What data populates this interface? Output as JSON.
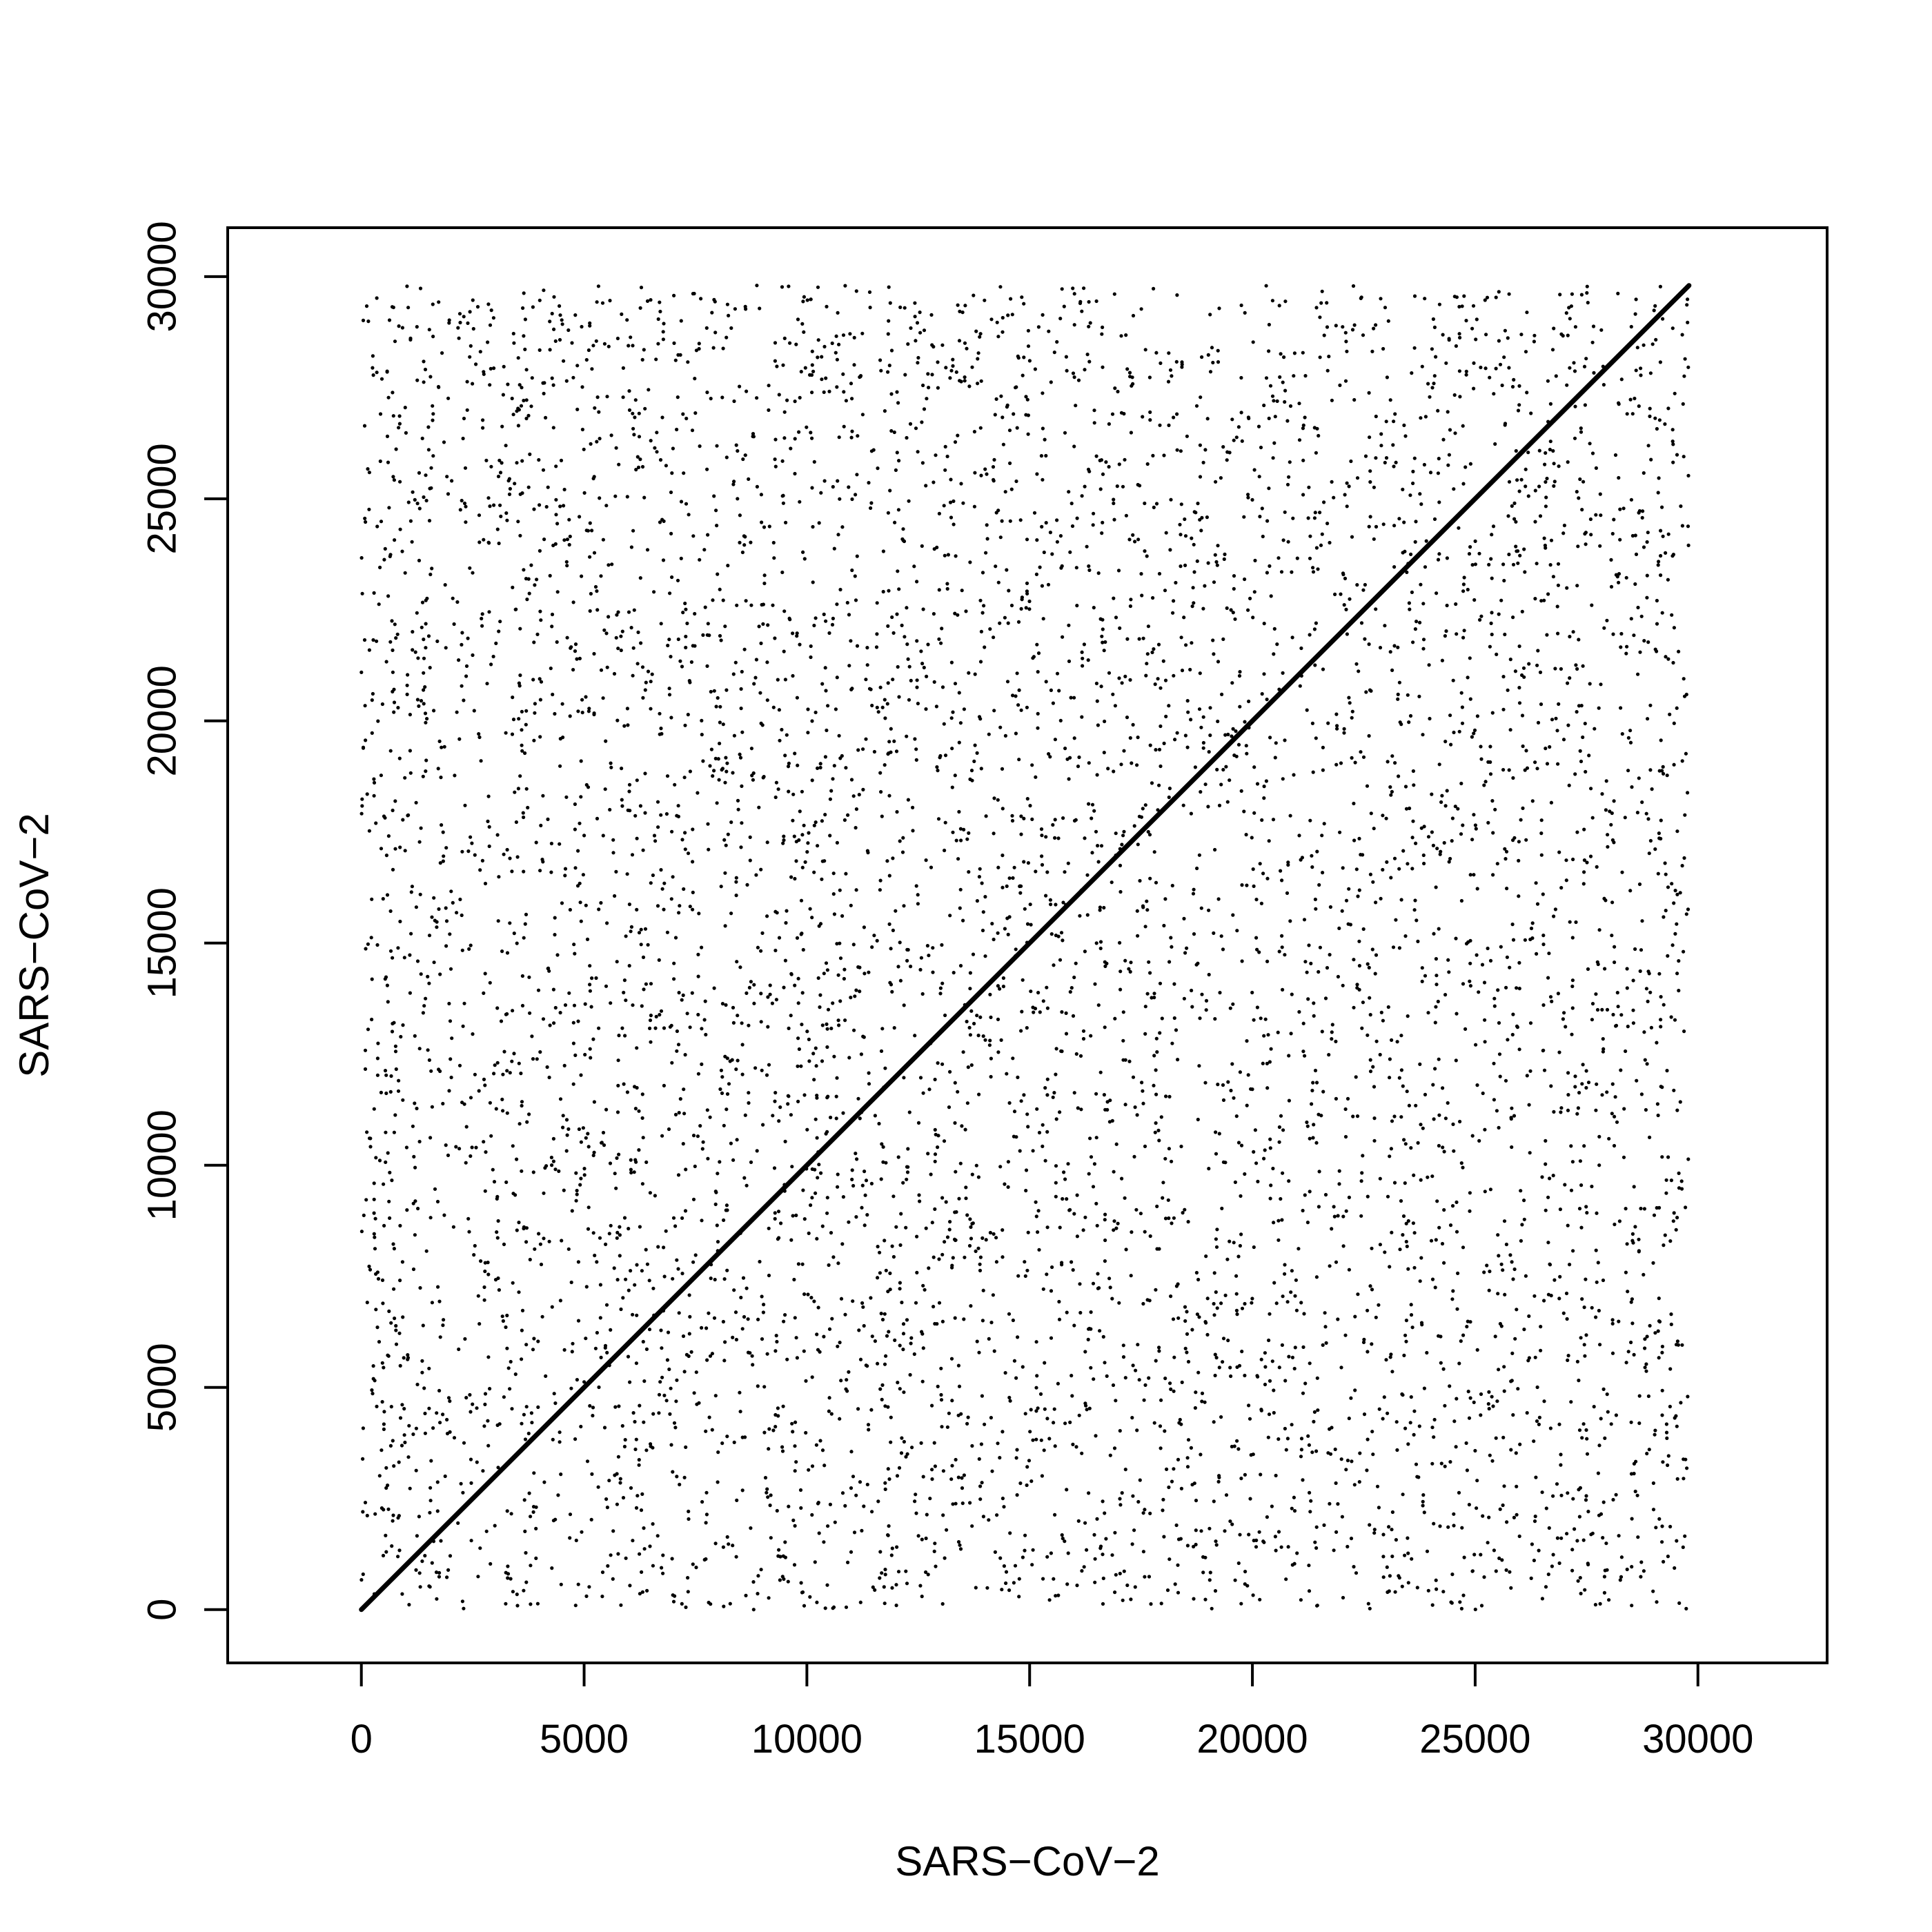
{
  "chart_data": {
    "type": "scatter",
    "title": "",
    "xlabel": "SARS−CoV−2",
    "ylabel": "SARS−CoV−2",
    "xlim": [
      -3000,
      32900
    ],
    "ylim": [
      -1200,
      31100
    ],
    "xticks": [
      {
        "value": 0,
        "label": "0"
      },
      {
        "value": 5000,
        "label": "5000"
      },
      {
        "value": 10000,
        "label": "10000"
      },
      {
        "value": 15000,
        "label": "15000"
      },
      {
        "value": 20000,
        "label": "20000"
      },
      {
        "value": 25000,
        "label": "25000"
      },
      {
        "value": 30000,
        "label": "30000"
      }
    ],
    "yticks": [
      {
        "value": 0,
        "label": "0"
      },
      {
        "value": 5000,
        "label": "5000"
      },
      {
        "value": 10000,
        "label": "10000"
      },
      {
        "value": 15000,
        "label": "15000"
      },
      {
        "value": 20000,
        "label": "20000"
      },
      {
        "value": 25000,
        "label": "25000"
      },
      {
        "value": 30000,
        "label": "30000"
      }
    ],
    "grid": false,
    "legend": "none",
    "point_color": "#000000",
    "series": [
      {
        "kind": "background-matches",
        "x_range": [
          0,
          29800
        ],
        "y_range": [
          0,
          29800
        ],
        "approx_points": 30000
      },
      {
        "kind": "main-diagonal",
        "x": [
          0,
          29800
        ],
        "y": [
          0,
          29800
        ]
      }
    ]
  }
}
